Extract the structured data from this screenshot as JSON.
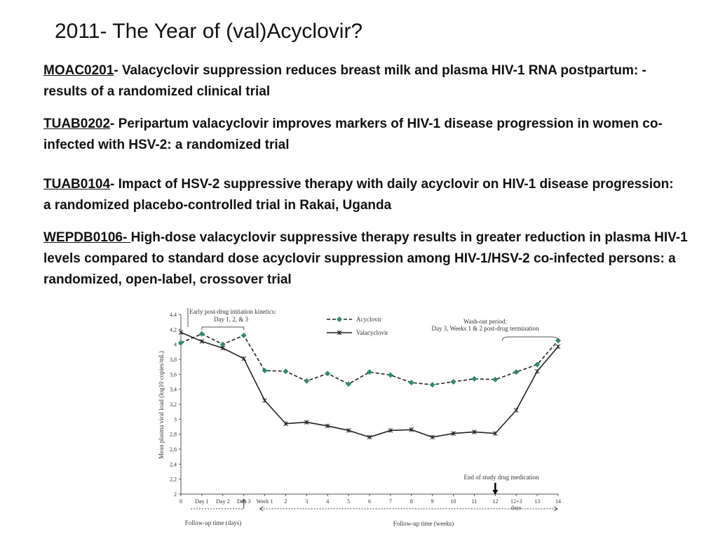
{
  "slide": {
    "title": "2011- The Year of  (val)Acyclovir?",
    "entries": [
      {
        "code": "MOAC0201",
        "sep": "-  ",
        "text": "Valacyclovir suppression reduces breast milk and plasma HIV-1 RNA postpartum: -results of a randomized clinical trial"
      },
      {
        "code": "TUAB0202",
        "sep": "- ",
        "text": "Peripartum valacyclovir improves markers of HIV-1 disease progression in women co-infected with HSV-2: a randomized trial"
      },
      {
        "code": "TUAB0104",
        "sep": "- ",
        "text": "Impact of HSV-2 suppressive therapy with daily acyclovir on HIV-1 disease progression: a randomized placebo-controlled trial in Rakai, Uganda"
      },
      {
        "code": "WEPDB0106- ",
        "sep": "",
        "text": "High-dose valacyclovir suppressive therapy results in greater reduction in plasma HIV-1 levels compared to standard dose acyclovir suppression among HIV-1/HSV-2 co-infected persons: a randomized, open-label, crossover trial"
      }
    ]
  },
  "chart_data": {
    "type": "line",
    "ylabel": "Mean plasma viral load (log10 copies/mL)",
    "ylim": [
      2,
      4.4
    ],
    "yticks": [
      "2",
      "2,2",
      "2,4",
      "2,6",
      "2,8",
      "3",
      "3,2",
      "3,4",
      "3,6",
      "3,8",
      "4",
      "4,2",
      "4,4"
    ],
    "categories": [
      "0",
      "Day 1",
      "Day 2",
      "Day 3",
      "Week 1",
      "2",
      "3",
      "4",
      "5",
      "6",
      "7",
      "8",
      "9",
      "10",
      "11",
      "12",
      "12+3\ndays",
      "13",
      "14"
    ],
    "series": [
      {
        "name": "Acyclovir",
        "color": "#2e8b6e",
        "style": "dashed",
        "marker": "diamond",
        "values": [
          4.02,
          4.14,
          4.0,
          4.12,
          3.65,
          3.64,
          3.51,
          3.61,
          3.47,
          3.63,
          3.59,
          3.49,
          3.46,
          3.5,
          3.54,
          3.53,
          3.63,
          3.73,
          4.05
        ]
      },
      {
        "name": "Valacyclovir",
        "color": "#222222",
        "style": "solid",
        "marker": "star",
        "values": [
          4.16,
          4.04,
          3.95,
          3.81,
          3.25,
          2.94,
          2.96,
          2.91,
          2.85,
          2.76,
          2.85,
          2.86,
          2.76,
          2.81,
          2.83,
          2.81,
          3.12,
          3.64,
          3.97
        ]
      }
    ],
    "annotations": {
      "early": "Early post-drug initiation kinetics:",
      "early_days": "Day  1, 2, & 3",
      "washout": "Wash-out period:",
      "washout_detail": "Day 3, Weeks 1 & 2 post-drug termination",
      "end_drug": "End of study drug medication",
      "followup_days": "Follow-up  time (days)",
      "followup_weeks": "Follow-up time (weeks)"
    }
  }
}
